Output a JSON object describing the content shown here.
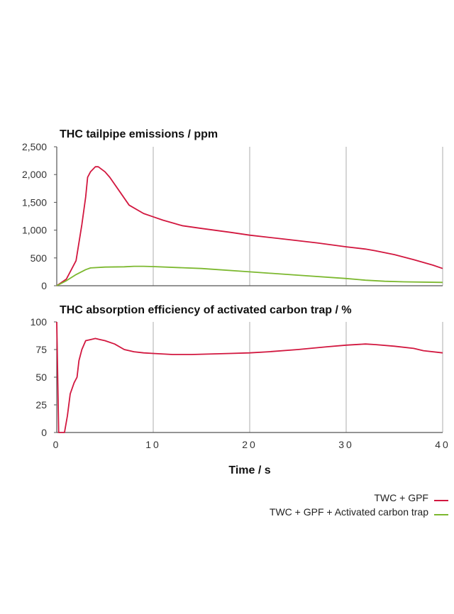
{
  "colors": {
    "series_a": "#d2173f",
    "series_b": "#7cb82f",
    "grid": "#9a9a9a",
    "axis": "#555555"
  },
  "chart_data": [
    {
      "type": "line",
      "title": "THC tailpipe emissions / ppm",
      "xlabel": "Time / s",
      "xlim": [
        0,
        40
      ],
      "ylim": [
        0,
        2500
      ],
      "yticks": [
        0,
        500,
        1000,
        1500,
        2000,
        2500
      ],
      "ytick_labels": [
        "0",
        "500",
        "1,000",
        "1,500",
        "2,000",
        "2,500"
      ],
      "grid": "vertical",
      "legend": "bottom-right",
      "series": [
        {
          "name": "TWC + GPF",
          "color": "#d2173f",
          "points": [
            [
              0,
              0
            ],
            [
              1,
              120
            ],
            [
              2,
              450
            ],
            [
              2.6,
              1100
            ],
            [
              3,
              1600
            ],
            [
              3.2,
              1950
            ],
            [
              3.5,
              2050
            ],
            [
              4,
              2140
            ],
            [
              4.3,
              2140
            ],
            [
              5,
              2050
            ],
            [
              5.5,
              1950
            ],
            [
              6.5,
              1700
            ],
            [
              7.5,
              1450
            ],
            [
              9,
              1300
            ],
            [
              10,
              1240
            ],
            [
              11,
              1180
            ],
            [
              12,
              1130
            ],
            [
              13,
              1080
            ],
            [
              15,
              1030
            ],
            [
              18,
              960
            ],
            [
              20,
              910
            ],
            [
              24,
              830
            ],
            [
              27,
              770
            ],
            [
              30,
              700
            ],
            [
              32,
              660
            ],
            [
              33,
              630
            ],
            [
              35,
              560
            ],
            [
              37,
              470
            ],
            [
              38,
              420
            ],
            [
              39,
              370
            ],
            [
              40,
              310
            ]
          ]
        },
        {
          "name": "TWC + GPF + Activated carbon trap",
          "color": "#7cb82f",
          "points": [
            [
              0,
              0
            ],
            [
              1,
              90
            ],
            [
              2,
              200
            ],
            [
              3,
              290
            ],
            [
              3.5,
              320
            ],
            [
              5,
              335
            ],
            [
              7,
              340
            ],
            [
              8,
              350
            ],
            [
              9,
              350
            ],
            [
              10,
              345
            ],
            [
              15,
              310
            ],
            [
              20,
              250
            ],
            [
              25,
              190
            ],
            [
              30,
              130
            ],
            [
              32,
              100
            ],
            [
              34,
              80
            ],
            [
              36,
              70
            ],
            [
              40,
              60
            ]
          ]
        }
      ]
    },
    {
      "type": "line",
      "title": "THC absorption efficiency of activated carbon trap / %",
      "xlabel": "Time / s",
      "xlim": [
        0,
        40
      ],
      "ylim": [
        0,
        100
      ],
      "yticks": [
        0,
        25,
        50,
        75,
        100
      ],
      "ytick_labels": [
        "0",
        "25",
        "50",
        "75",
        "100"
      ],
      "xticks": [
        0,
        10,
        20,
        30,
        40
      ],
      "xtick_labels": [
        "0",
        "10",
        "20",
        "30",
        "40"
      ],
      "grid": "vertical",
      "series": [
        {
          "color": "#d2173f",
          "points": [
            [
              0,
              100
            ],
            [
              0.2,
              0
            ],
            [
              0.8,
              0
            ],
            [
              1.1,
              15
            ],
            [
              1.4,
              35
            ],
            [
              1.8,
              45
            ],
            [
              2.1,
              50
            ],
            [
              2.3,
              65
            ],
            [
              2.6,
              75
            ],
            [
              3,
              83
            ],
            [
              3.5,
              84
            ],
            [
              4,
              85
            ],
            [
              4.5,
              84
            ],
            [
              5,
              83
            ],
            [
              6,
              80
            ],
            [
              7,
              75
            ],
            [
              8,
              73
            ],
            [
              9,
              72
            ],
            [
              10,
              71.5
            ],
            [
              12,
              70.5
            ],
            [
              14,
              70.5
            ],
            [
              18,
              71.5
            ],
            [
              20,
              72
            ],
            [
              22,
              73
            ],
            [
              25,
              75
            ],
            [
              28,
              77.5
            ],
            [
              30,
              79
            ],
            [
              32,
              80
            ],
            [
              33,
              79.5
            ],
            [
              35,
              78
            ],
            [
              37,
              76
            ],
            [
              38,
              74
            ],
            [
              40,
              72
            ]
          ]
        }
      ]
    }
  ],
  "legend": [
    {
      "label": "TWC + GPF",
      "color": "#d2173f"
    },
    {
      "label": "TWC + GPF + Activated carbon trap",
      "color": "#7cb82f"
    }
  ]
}
